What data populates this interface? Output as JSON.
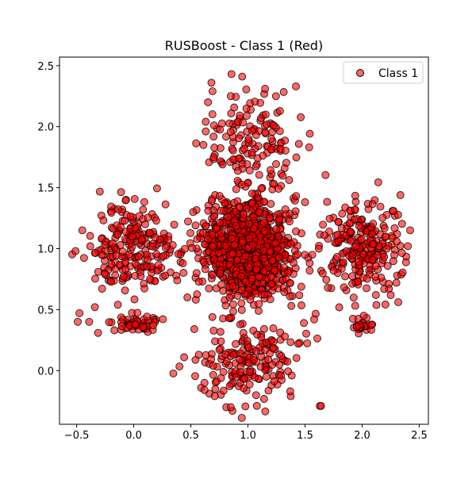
{
  "chart_data": {
    "type": "scatter",
    "title": "RUSBoost - Class 1 (Red)",
    "xlabel": "",
    "ylabel": "",
    "xlim": [
      -0.65,
      2.58
    ],
    "ylim": [
      -0.44,
      2.57
    ],
    "xticks": [
      -0.5,
      0.0,
      0.5,
      1.0,
      1.5,
      2.0,
      2.5
    ],
    "xtick_labels": [
      "−0.5",
      "0.0",
      "0.5",
      "1.0",
      "1.5",
      "2.0",
      "2.5"
    ],
    "yticks": [
      0.0,
      0.5,
      1.0,
      1.5,
      2.0,
      2.5
    ],
    "ytick_labels": [
      "0.0",
      "0.5",
      "1.0",
      "1.5",
      "2.0",
      "2.5"
    ],
    "grid": false,
    "legend": {
      "position": "top-right",
      "entries": [
        "Class 1"
      ]
    },
    "series": [
      {
        "name": "Class 1",
        "color": "#ff0000",
        "edge_color": "#000000",
        "alpha": 0.6,
        "marker": "circle",
        "clusters": [
          {
            "cx": 1.0,
            "cy": 1.0,
            "sx": 0.19,
            "sy": 0.2,
            "n": 1000
          },
          {
            "cx": 1.07,
            "cy": 1.9,
            "sx": 0.21,
            "sy": 0.2,
            "n": 130
          },
          {
            "cx": 1.0,
            "cy": 0.08,
            "sx": 0.2,
            "sy": 0.17,
            "n": 170
          },
          {
            "cx": 0.02,
            "cy": 1.0,
            "sx": 0.19,
            "sy": 0.18,
            "n": 220
          },
          {
            "cx": 2.02,
            "cy": 1.02,
            "sx": 0.17,
            "sy": 0.19,
            "n": 230
          },
          {
            "cx": 0.0,
            "cy": 0.38,
            "sx": 0.12,
            "sy": 0.04,
            "n": 50
          },
          {
            "cx": 2.0,
            "cy": 0.37,
            "sx": 0.05,
            "sy": 0.03,
            "n": 25
          }
        ],
        "points": [
          [
            0.95,
            2.41
          ],
          [
            0.68,
            2.36
          ],
          [
            0.69,
            2.29
          ],
          [
            0.65,
            2.2
          ],
          [
            0.85,
            2.25
          ],
          [
            1.15,
            2.31
          ],
          [
            1.42,
            2.33
          ],
          [
            0.63,
            2.04
          ],
          [
            0.61,
            1.85
          ],
          [
            0.7,
            1.75
          ],
          [
            -0.51,
            0.98
          ],
          [
            -0.45,
            1.15
          ],
          [
            -0.49,
            0.4
          ],
          [
            -0.39,
            0.4
          ],
          [
            -0.34,
            0.52
          ],
          [
            0.41,
            0.89
          ],
          [
            0.43,
            0.88
          ],
          [
            0.52,
            1.3
          ],
          [
            0.55,
            0.8
          ],
          [
            0.47,
            0.6
          ],
          [
            1.63,
            -0.29
          ],
          [
            1.64,
            -0.29
          ],
          [
            1.75,
            0.82
          ],
          [
            1.58,
            0.42
          ],
          [
            1.7,
            0.68
          ],
          [
            2.42,
            1.15
          ],
          [
            2.4,
            1.02
          ],
          [
            2.3,
            0.72
          ],
          [
            2.12,
            0.62
          ],
          [
            2.25,
            0.62
          ],
          [
            0.53,
            0.34
          ],
          [
            0.57,
            0.13
          ],
          [
            0.59,
            -0.14
          ],
          [
            0.62,
            -0.1
          ],
          [
            0.62,
            -0.16
          ],
          [
            0.81,
            -0.3
          ],
          [
            0.85,
            -0.3
          ],
          [
            1.37,
            -0.17
          ],
          [
            1.44,
            0.22
          ],
          [
            1.49,
            0.39
          ],
          [
            1.38,
            0.53
          ],
          [
            1.5,
            1.38
          ],
          [
            1.62,
            1.0
          ],
          [
            1.54,
            0.82
          ],
          [
            1.67,
            1.11
          ]
        ]
      }
    ]
  }
}
